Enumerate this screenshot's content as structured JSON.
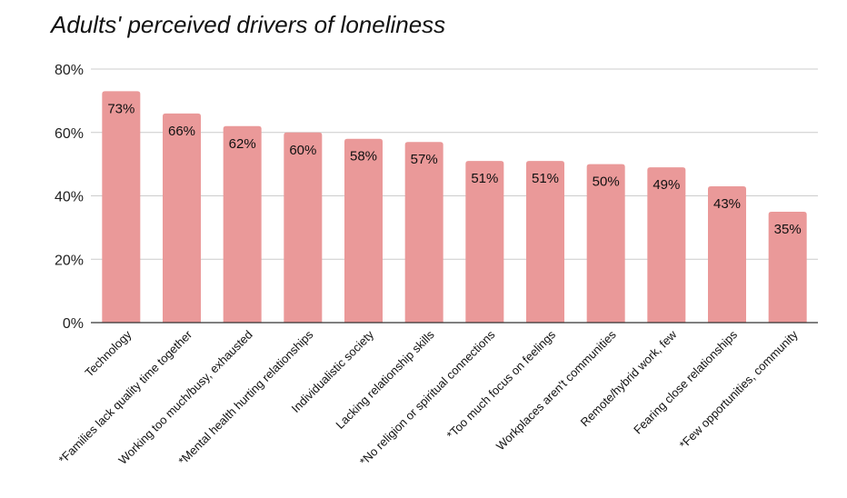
{
  "chart_data": {
    "type": "bar",
    "title": "Adults' perceived drivers of loneliness",
    "xlabel": "",
    "ylabel": "",
    "ylim": [
      0,
      80
    ],
    "yticks": [
      0,
      20,
      40,
      60,
      80
    ],
    "ytick_labels": [
      "0%",
      "20%",
      "40%",
      "60%",
      "80%"
    ],
    "categories": [
      "Technology",
      "*Families lack quality time together",
      "Working too much/busy, exhausted",
      "*Mental health hurting relationships",
      "Individualistic society",
      "Lacking relationship skills",
      "*No religion or spiritual connections",
      "*Too much focus on feelings",
      "Workplaces aren't communities",
      "Remote/hybrid work, few",
      "Fearing close relationships",
      "*Few opportunities, community"
    ],
    "values": [
      73,
      66,
      62,
      60,
      58,
      57,
      51,
      51,
      50,
      49,
      43,
      35
    ],
    "data_labels": [
      "73%",
      "66%",
      "62%",
      "60%",
      "58%",
      "57%",
      "51%",
      "51%",
      "50%",
      "49%",
      "43%",
      "35%"
    ],
    "grid": true,
    "legend": "none",
    "colors": {
      "bar": "#EA9999",
      "grid": "#CCCCCC",
      "axis": "#333333"
    }
  }
}
